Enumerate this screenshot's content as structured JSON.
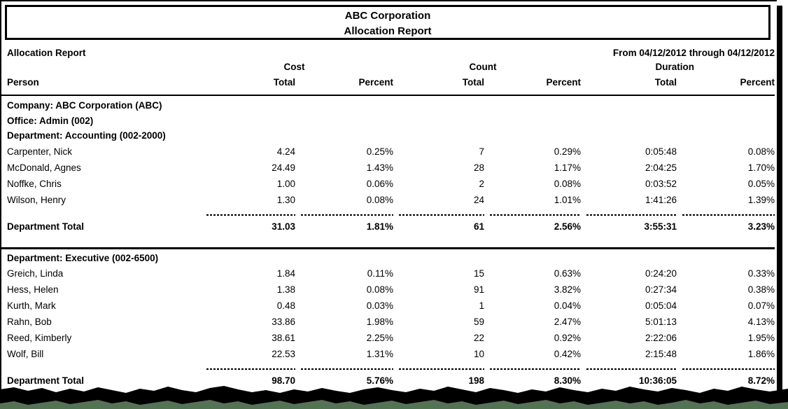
{
  "title_box": {
    "line1": "ABC Corporation",
    "line2": "Allocation Report"
  },
  "report": {
    "name": "Allocation Report",
    "date_range": "From 04/12/2012 through 04/12/2012",
    "column_groups": [
      "Cost",
      "Count",
      "Duration"
    ],
    "columns": [
      "Person",
      "Total",
      "Percent",
      "Total",
      "Percent",
      "Total",
      "Percent"
    ],
    "company_line": "Company: ABC Corporation (ABC)",
    "office_line": "Office: Admin (002)",
    "sections": [
      {
        "department_line": "Department: Accounting (002-2000)",
        "rows": [
          {
            "person": "Carpenter, Nick",
            "cost_total": "4.24",
            "cost_percent": "0.25%",
            "count_total": "7",
            "count_percent": "0.29%",
            "duration_total": "0:05:48",
            "duration_percent": "0.08%"
          },
          {
            "person": "McDonald, Agnes",
            "cost_total": "24.49",
            "cost_percent": "1.43%",
            "count_total": "28",
            "count_percent": "1.17%",
            "duration_total": "2:04:25",
            "duration_percent": "1.70%"
          },
          {
            "person": "Noffke, Chris",
            "cost_total": "1.00",
            "cost_percent": "0.06%",
            "count_total": "2",
            "count_percent": "0.08%",
            "duration_total": "0:03:52",
            "duration_percent": "0.05%"
          },
          {
            "person": "Wilson, Henry",
            "cost_total": "1.30",
            "cost_percent": "0.08%",
            "count_total": "24",
            "count_percent": "1.01%",
            "duration_total": "1:41:26",
            "duration_percent": "1.39%"
          }
        ],
        "total": {
          "label": "Department Total",
          "cost_total": "31.03",
          "cost_percent": "1.81%",
          "count_total": "61",
          "count_percent": "2.56%",
          "duration_total": "3:55:31",
          "duration_percent": "3.23%"
        }
      },
      {
        "department_line": "Department: Executive (002-6500)",
        "rows": [
          {
            "person": "Greich, Linda",
            "cost_total": "1.84",
            "cost_percent": "0.11%",
            "count_total": "15",
            "count_percent": "0.63%",
            "duration_total": "0:24:20",
            "duration_percent": "0.33%"
          },
          {
            "person": "Hess, Helen",
            "cost_total": "1.38",
            "cost_percent": "0.08%",
            "count_total": "91",
            "count_percent": "3.82%",
            "duration_total": "0:27:34",
            "duration_percent": "0.38%"
          },
          {
            "person": "Kurth, Mark",
            "cost_total": "0.48",
            "cost_percent": "0.03%",
            "count_total": "1",
            "count_percent": "0.04%",
            "duration_total": "0:05:04",
            "duration_percent": "0.07%"
          },
          {
            "person": "Rahn, Bob",
            "cost_total": "33.86",
            "cost_percent": "1.98%",
            "count_total": "59",
            "count_percent": "2.47%",
            "duration_total": "5:01:13",
            "duration_percent": "4.13%"
          },
          {
            "person": "Reed, Kimberly",
            "cost_total": "38.61",
            "cost_percent": "2.25%",
            "count_total": "22",
            "count_percent": "0.92%",
            "duration_total": "2:22:06",
            "duration_percent": "1.95%"
          },
          {
            "person": "Wolf, Bill",
            "cost_total": "22.53",
            "cost_percent": "1.31%",
            "count_total": "10",
            "count_percent": "0.42%",
            "duration_total": "2:15:48",
            "duration_percent": "1.86%"
          }
        ],
        "total": {
          "label": "Department Total",
          "cost_total": "98.70",
          "cost_percent": "5.76%",
          "count_total": "198",
          "count_percent": "8.30%",
          "duration_total": "10:36:05",
          "duration_percent": "8.72%"
        }
      }
    ]
  },
  "colors": {
    "page_bg": "#ffffff",
    "text": "#000000",
    "shadow_black": "#000000",
    "desk_green": "#547355"
  }
}
